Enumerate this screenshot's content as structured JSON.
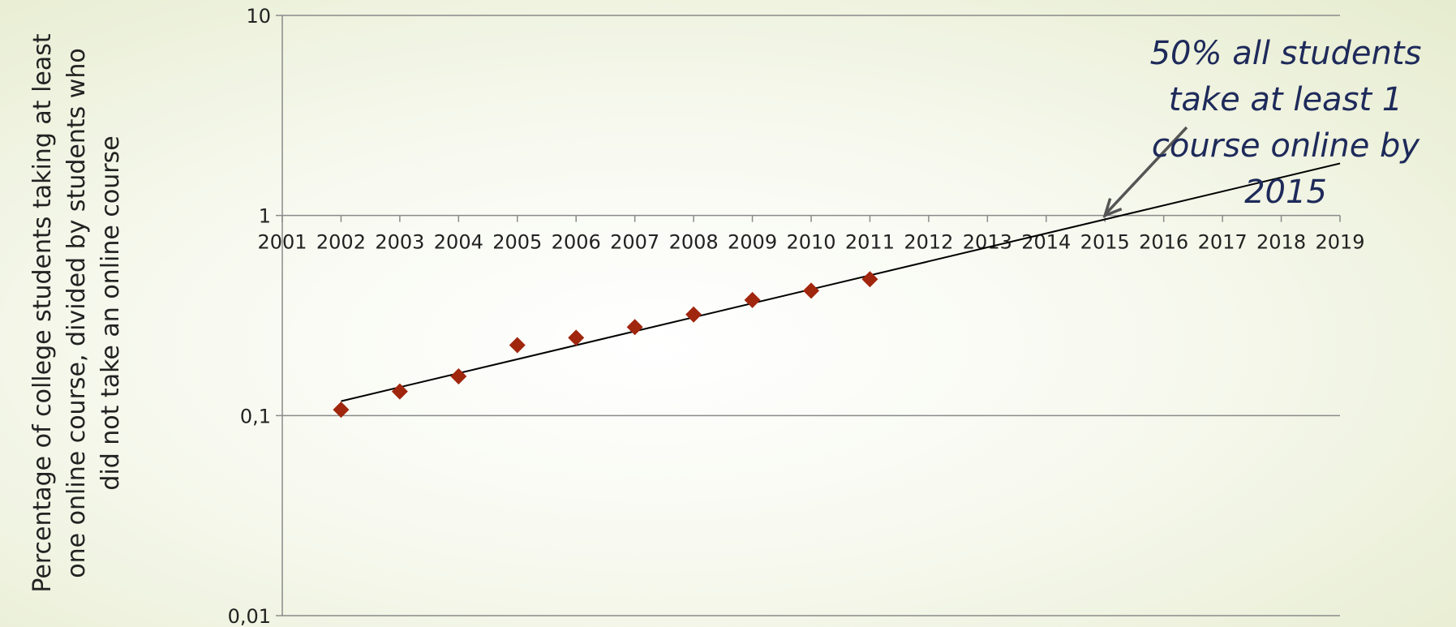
{
  "chart_data": {
    "type": "scatter",
    "x_axis": {
      "min": 2001,
      "max": 2019,
      "step": 1
    },
    "y_axis": {
      "scale": "log",
      "min": 0.01,
      "max": 10,
      "ticks": [
        10,
        1,
        0.1,
        0.01
      ],
      "tick_labels": [
        "10",
        "1",
        "0,1",
        "0,01"
      ]
    },
    "ylabel": "Percentage of college students taking at least one online course, divided by students who did not take an online course",
    "grid": "horizontal",
    "series": [
      {
        "marker": "diamond",
        "color": "#a0260d",
        "x": [
          2002,
          2003,
          2004,
          2005,
          2006,
          2007,
          2008,
          2009,
          2010,
          2011
        ],
        "y": [
          0.107,
          0.132,
          0.157,
          0.225,
          0.245,
          0.277,
          0.32,
          0.378,
          0.421,
          0.48
        ]
      }
    ],
    "trendline": {
      "x": [
        2002,
        2019
      ],
      "y": [
        0.118,
        1.82
      ],
      "color": "#000000"
    },
    "annotation": {
      "text": "50% all students take at least 1 course online by 2015",
      "color": "#1e2a5a",
      "arrow_target": {
        "x": 2015,
        "y": 1
      }
    }
  }
}
